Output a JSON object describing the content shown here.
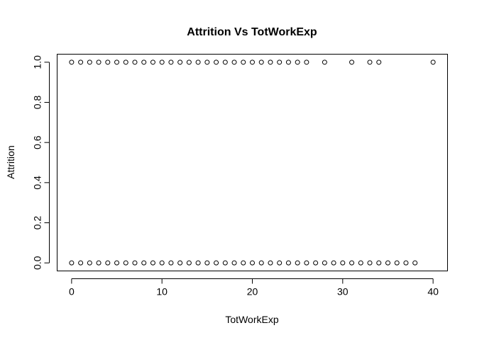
{
  "chart_data": {
    "type": "scatter",
    "title": "Attrition Vs TotWorkExp",
    "xlabel": "TotWorkExp",
    "ylabel": "Attrition",
    "xlim": [
      -1.6,
      41.6
    ],
    "ylim": [
      -0.04,
      1.04
    ],
    "x_ticks": [
      0,
      10,
      20,
      30,
      40
    ],
    "x_tick_labels": [
      "0",
      "10",
      "20",
      "30",
      "40"
    ],
    "y_ticks": [
      0.0,
      0.2,
      0.4,
      0.6,
      0.8,
      1.0
    ],
    "y_tick_labels": [
      "0.0",
      "0.2",
      "0.4",
      "0.6",
      "0.8",
      "1.0"
    ],
    "grid": false,
    "marker": "open-circle",
    "series": [
      {
        "points": [
          [
            0,
            0
          ],
          [
            1,
            0
          ],
          [
            2,
            0
          ],
          [
            3,
            0
          ],
          [
            4,
            0
          ],
          [
            5,
            0
          ],
          [
            6,
            0
          ],
          [
            7,
            0
          ],
          [
            8,
            0
          ],
          [
            9,
            0
          ],
          [
            10,
            0
          ],
          [
            11,
            0
          ],
          [
            12,
            0
          ],
          [
            13,
            0
          ],
          [
            14,
            0
          ],
          [
            15,
            0
          ],
          [
            16,
            0
          ],
          [
            17,
            0
          ],
          [
            18,
            0
          ],
          [
            19,
            0
          ],
          [
            20,
            0
          ],
          [
            21,
            0
          ],
          [
            22,
            0
          ],
          [
            23,
            0
          ],
          [
            24,
            0
          ],
          [
            25,
            0
          ],
          [
            26,
            0
          ],
          [
            27,
            0
          ],
          [
            28,
            0
          ],
          [
            29,
            0
          ],
          [
            30,
            0
          ],
          [
            31,
            0
          ],
          [
            32,
            0
          ],
          [
            33,
            0
          ],
          [
            34,
            0
          ],
          [
            35,
            0
          ],
          [
            36,
            0
          ],
          [
            37,
            0
          ],
          [
            38,
            0
          ],
          [
            0,
            1
          ],
          [
            1,
            1
          ],
          [
            2,
            1
          ],
          [
            3,
            1
          ],
          [
            4,
            1
          ],
          [
            5,
            1
          ],
          [
            6,
            1
          ],
          [
            7,
            1
          ],
          [
            8,
            1
          ],
          [
            9,
            1
          ],
          [
            10,
            1
          ],
          [
            11,
            1
          ],
          [
            12,
            1
          ],
          [
            13,
            1
          ],
          [
            14,
            1
          ],
          [
            15,
            1
          ],
          [
            16,
            1
          ],
          [
            17,
            1
          ],
          [
            18,
            1
          ],
          [
            19,
            1
          ],
          [
            20,
            1
          ],
          [
            21,
            1
          ],
          [
            22,
            1
          ],
          [
            23,
            1
          ],
          [
            24,
            1
          ],
          [
            25,
            1
          ],
          [
            26,
            1
          ],
          [
            28,
            1
          ],
          [
            31,
            1
          ],
          [
            33,
            1
          ],
          [
            34,
            1
          ],
          [
            40,
            1
          ]
        ]
      }
    ]
  }
}
